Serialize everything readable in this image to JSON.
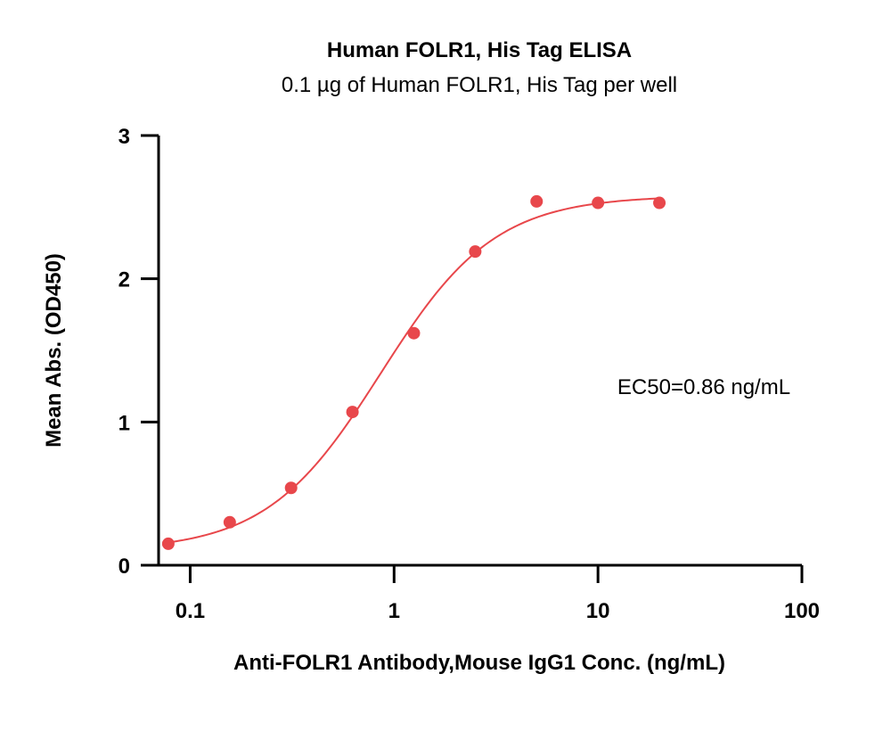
{
  "chart_data": {
    "type": "scatter",
    "title": "Human FOLR1, His Tag ELISA",
    "subtitle": "0.1 µg of Human FOLR1, His Tag per well",
    "xlabel": "Anti-FOLR1 Antibody,Mouse IgG1 Conc. (ng/mL)",
    "ylabel": "Mean Abs. (OD450)",
    "x_scale": "log",
    "xlim": [
      0.07,
      100
    ],
    "ylim": [
      0,
      3
    ],
    "x_ticks": [
      0.1,
      1,
      10,
      100
    ],
    "x_tick_labels": [
      "0.1",
      "1",
      "10",
      "100"
    ],
    "y_ticks": [
      0,
      1,
      2,
      3
    ],
    "y_tick_labels": [
      "0",
      "1",
      "2",
      "3"
    ],
    "grid": false,
    "annotation": "EC50=0.86 ng/mL",
    "color": "#e8474b",
    "series": [
      {
        "x": [
          0.0781,
          0.1563,
          0.3125,
          0.625,
          1.25,
          2.5,
          5,
          10,
          20
        ],
        "y": [
          0.15,
          0.3,
          0.54,
          1.07,
          1.62,
          2.19,
          2.54,
          2.53,
          2.53
        ]
      }
    ],
    "fit": {
      "type": "4PL",
      "ec50": 0.86,
      "bottom": 0.1,
      "top": 2.58,
      "hill": 1.55,
      "x_range": [
        0.0781,
        20
      ]
    }
  }
}
